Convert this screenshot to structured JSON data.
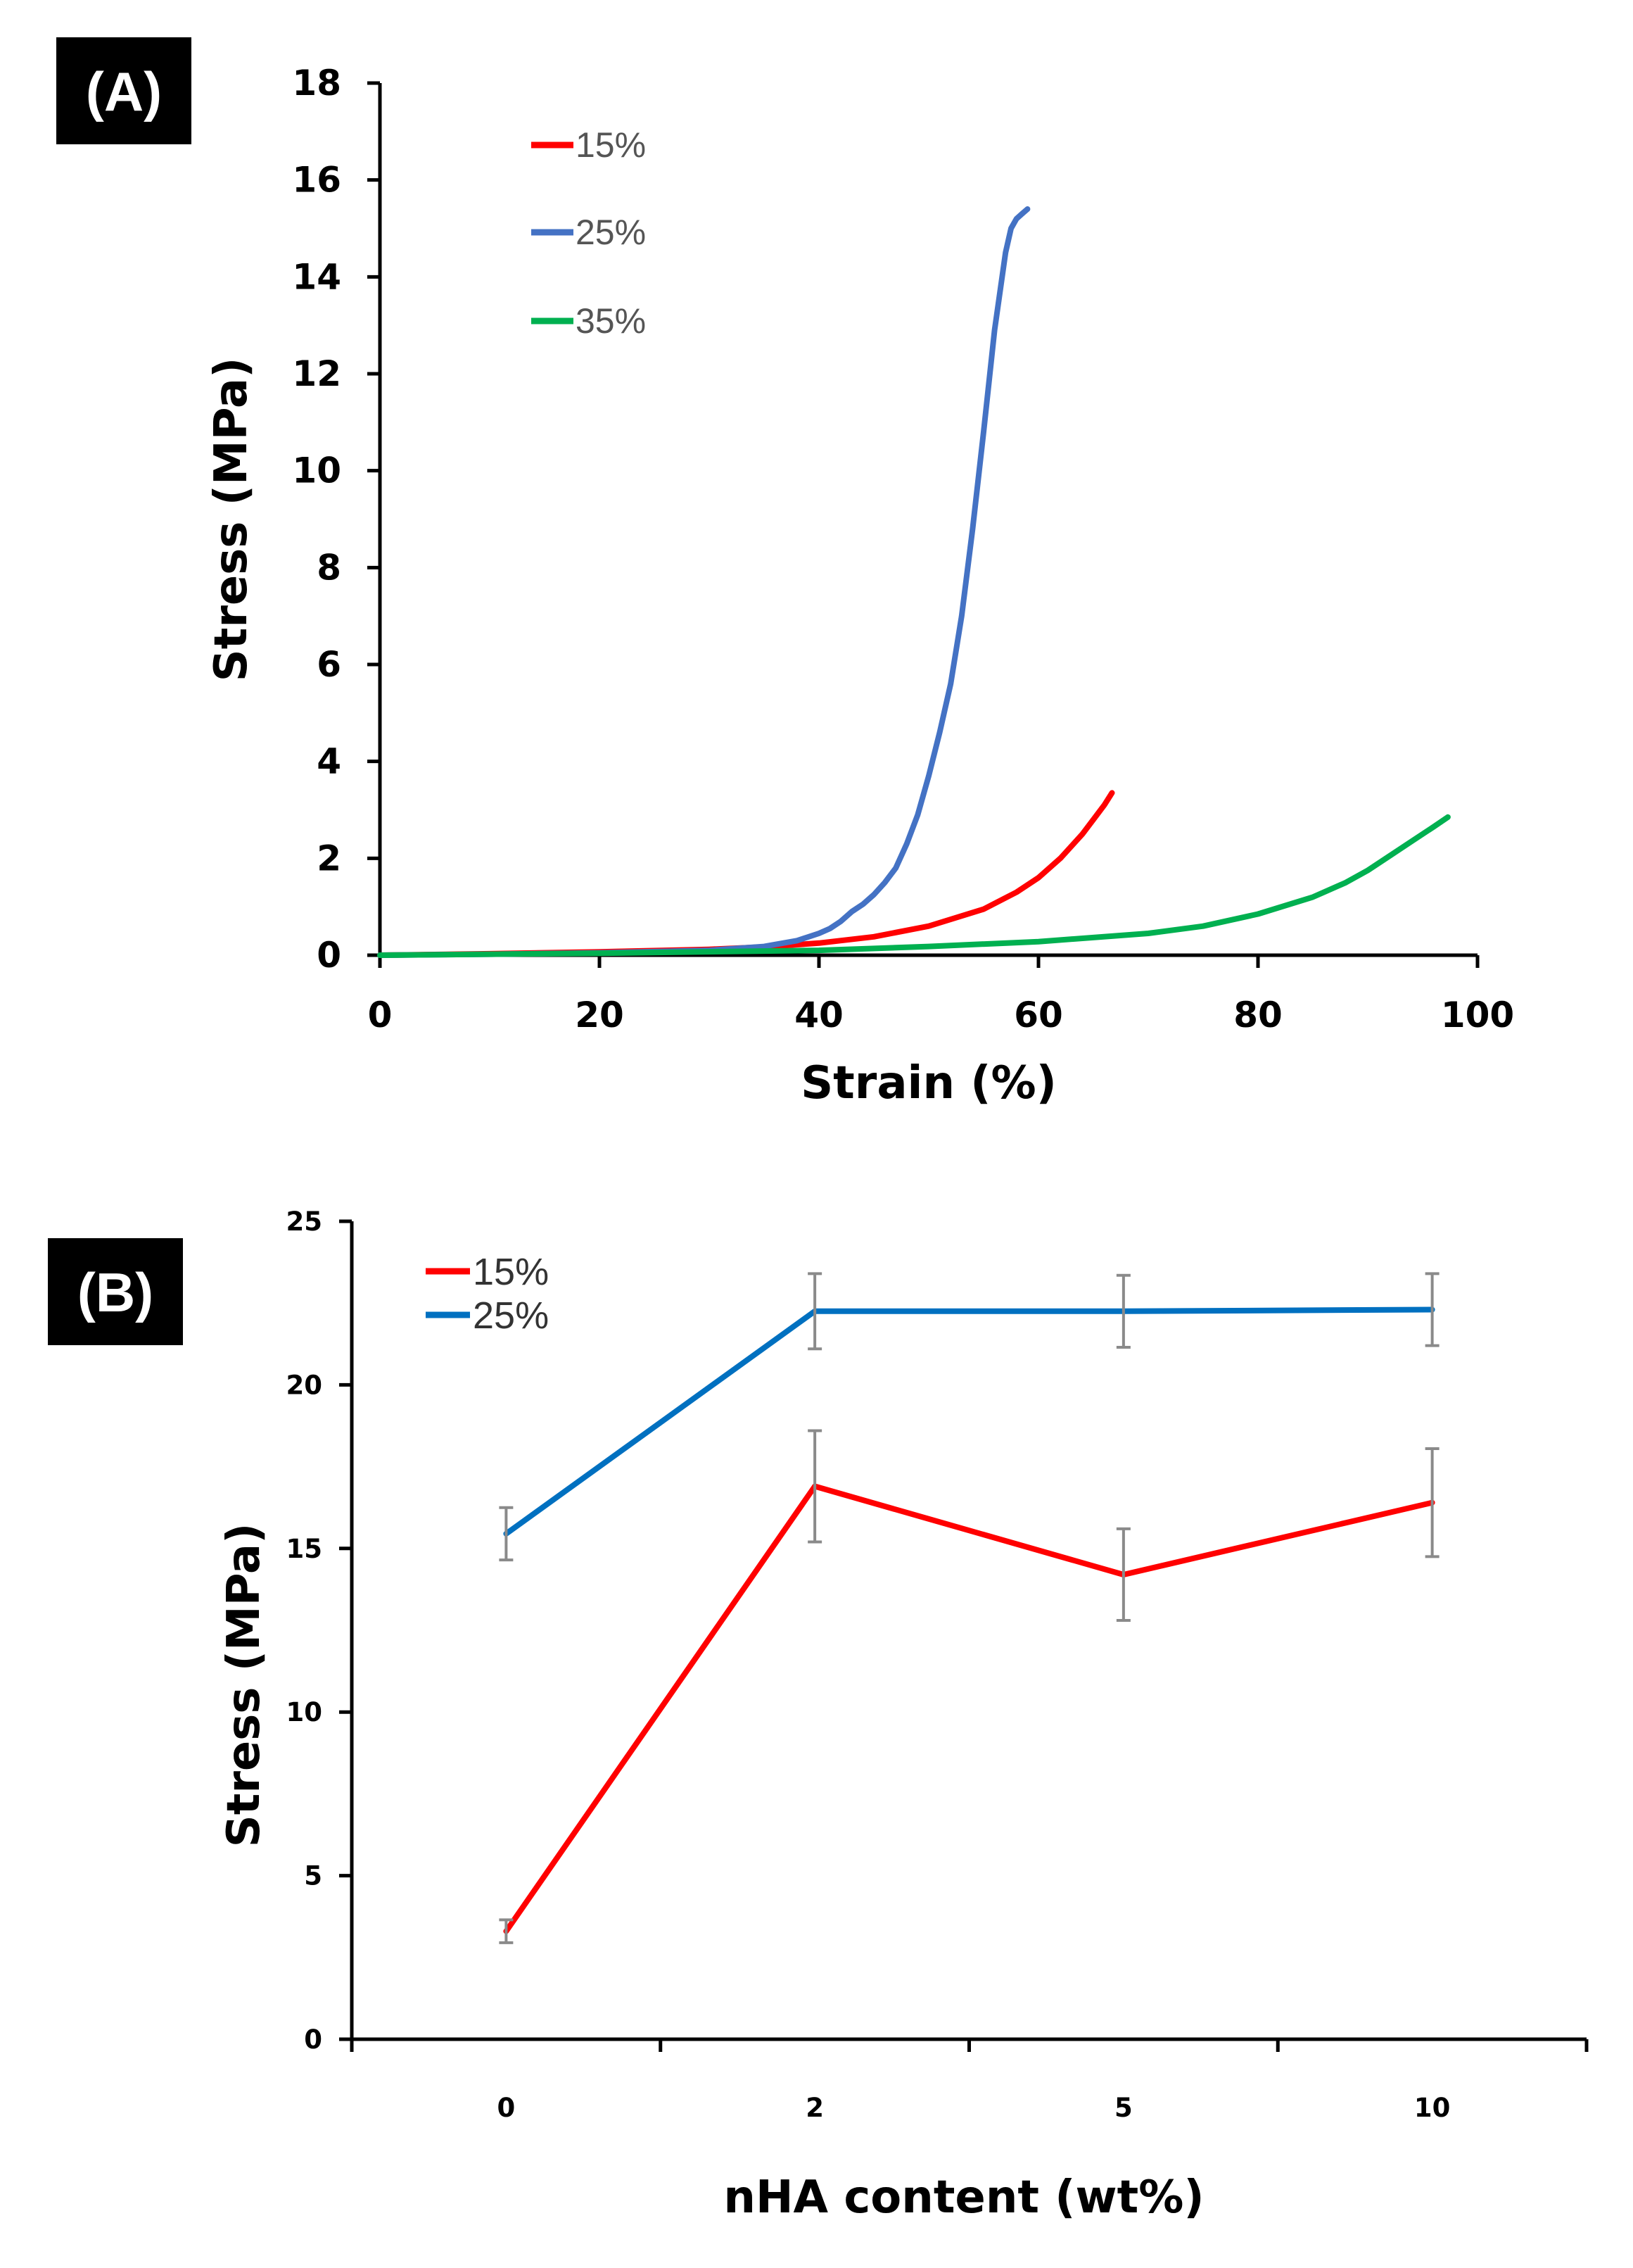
{
  "chart_data": [
    {
      "panel": "(A)",
      "type": "line",
      "title": "",
      "xlabel": "Strain (%)",
      "ylabel": "Stress (MPa)",
      "xlim": [
        0,
        100
      ],
      "ylim": [
        0,
        18
      ],
      "xticks": [
        0,
        20,
        40,
        60,
        80,
        100
      ],
      "yticks": [
        0,
        2,
        4,
        6,
        8,
        10,
        12,
        14,
        16,
        18
      ],
      "legend_position": "top-left",
      "series": [
        {
          "name": "15%",
          "color": "#ff0000",
          "x": [
            0,
            10,
            20,
            30,
            35,
            40,
            45,
            50,
            55,
            58,
            60,
            62,
            64,
            65,
            66,
            66.7
          ],
          "y": [
            0,
            0.03,
            0.07,
            0.12,
            0.17,
            0.25,
            0.38,
            0.6,
            0.95,
            1.3,
            1.6,
            2.0,
            2.5,
            2.8,
            3.1,
            3.35
          ]
        },
        {
          "name": "25%",
          "color": "#4472c4",
          "x": [
            0,
            10,
            20,
            30,
            35,
            38,
            40,
            41,
            42,
            43,
            44,
            45,
            46,
            47,
            48,
            49,
            50,
            51,
            52,
            53,
            54,
            55,
            56,
            57,
            57.5,
            58,
            58.5,
            59
          ],
          "y": [
            0,
            0.02,
            0.05,
            0.1,
            0.18,
            0.3,
            0.45,
            0.55,
            0.7,
            0.9,
            1.05,
            1.25,
            1.5,
            1.8,
            2.3,
            2.9,
            3.7,
            4.6,
            5.6,
            7.0,
            8.8,
            10.8,
            12.9,
            14.5,
            15.0,
            15.2,
            15.3,
            15.4
          ]
        },
        {
          "name": "35%",
          "color": "#00b050",
          "x": [
            0,
            20,
            40,
            50,
            60,
            70,
            75,
            80,
            85,
            88,
            90,
            92,
            94,
            96,
            97.3
          ],
          "y": [
            0,
            0.04,
            0.1,
            0.18,
            0.28,
            0.45,
            0.6,
            0.85,
            1.2,
            1.5,
            1.75,
            2.05,
            2.35,
            2.65,
            2.85
          ]
        }
      ]
    },
    {
      "panel": "(B)",
      "type": "line",
      "title": "",
      "xlabel": "nHA content (wt%)",
      "ylabel": "Stress (MPa)",
      "categories": [
        "0",
        "2",
        "5",
        "10"
      ],
      "ylim": [
        0,
        25
      ],
      "yticks": [
        0,
        5,
        10,
        15,
        20,
        25
      ],
      "legend_position": "top-left",
      "series": [
        {
          "name": "15%",
          "color": "#ff0000",
          "values": [
            3.3,
            16.9,
            14.2,
            16.4
          ],
          "errors": [
            0.35,
            1.7,
            1.4,
            1.65
          ]
        },
        {
          "name": "25%",
          "color": "#0070c0",
          "values": [
            15.45,
            22.25,
            22.25,
            22.3
          ],
          "errors": [
            0.8,
            1.15,
            1.1,
            1.1
          ]
        }
      ]
    }
  ]
}
